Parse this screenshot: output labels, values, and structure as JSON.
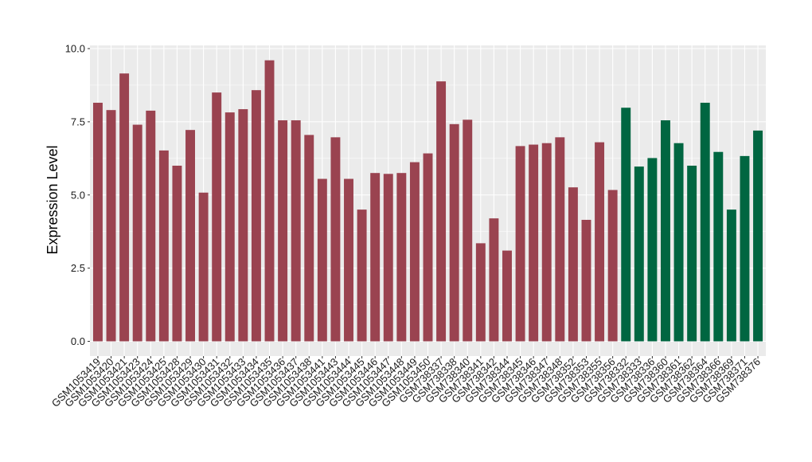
{
  "chart_data": {
    "type": "bar",
    "title": "",
    "xlabel": "",
    "ylabel": "Expression Level",
    "ylim": [
      0,
      10
    ],
    "yticks": [
      "0.0",
      "2.5",
      "5.0",
      "7.5",
      "10.0"
    ],
    "grid": true,
    "legend": "none",
    "colors": {
      "group1": "#9a4350",
      "group2": "#006641",
      "panel": "#ebebeb",
      "grid": "#ffffff"
    },
    "categories": [
      "GSM1053419",
      "GSM1053420",
      "GSM1053421",
      "GSM1053423",
      "GSM1053424",
      "GSM1053425",
      "GSM1053428",
      "GSM1053429",
      "GSM1053430",
      "GSM1053431",
      "GSM1053432",
      "GSM1053433",
      "GSM1053434",
      "GSM1053435",
      "GSM1053436",
      "GSM1053437",
      "GSM1053438",
      "GSM1053441",
      "GSM1053443",
      "GSM1053444",
      "GSM1053445",
      "GSM1053446",
      "GSM1053447",
      "GSM1053448",
      "GSM1053449",
      "GSM1053450",
      "GSM738337",
      "GSM738338",
      "GSM738340",
      "GSM738341",
      "GSM738342",
      "GSM738344",
      "GSM738345",
      "GSM738346",
      "GSM738347",
      "GSM738348",
      "GSM738352",
      "GSM738353",
      "GSM738355",
      "GSM738356",
      "GSM738332",
      "GSM738333",
      "GSM738336",
      "GSM738360",
      "GSM738361",
      "GSM738362",
      "GSM738364",
      "GSM738366",
      "GSM738369",
      "GSM738371",
      "GSM738376"
    ],
    "values": [
      8.15,
      7.9,
      9.15,
      7.4,
      7.88,
      6.52,
      6.0,
      7.22,
      5.08,
      8.5,
      7.82,
      7.93,
      8.58,
      9.6,
      7.55,
      7.55,
      7.05,
      5.55,
      6.97,
      5.55,
      4.5,
      5.75,
      5.72,
      5.75,
      6.12,
      6.42,
      8.88,
      7.42,
      7.57,
      3.35,
      4.2,
      3.1,
      6.67,
      6.72,
      6.77,
      6.97,
      5.26,
      4.15,
      6.8,
      5.17,
      7.98,
      5.97,
      6.26,
      7.55,
      6.77,
      6.0,
      8.15,
      6.47,
      4.5,
      6.33,
      7.2
    ],
    "groups": [
      1,
      1,
      1,
      1,
      1,
      1,
      1,
      1,
      1,
      1,
      1,
      1,
      1,
      1,
      1,
      1,
      1,
      1,
      1,
      1,
      1,
      1,
      1,
      1,
      1,
      1,
      1,
      1,
      1,
      1,
      1,
      1,
      1,
      1,
      1,
      1,
      1,
      1,
      1,
      1,
      2,
      2,
      2,
      2,
      2,
      2,
      2,
      2,
      2,
      2,
      2
    ]
  }
}
